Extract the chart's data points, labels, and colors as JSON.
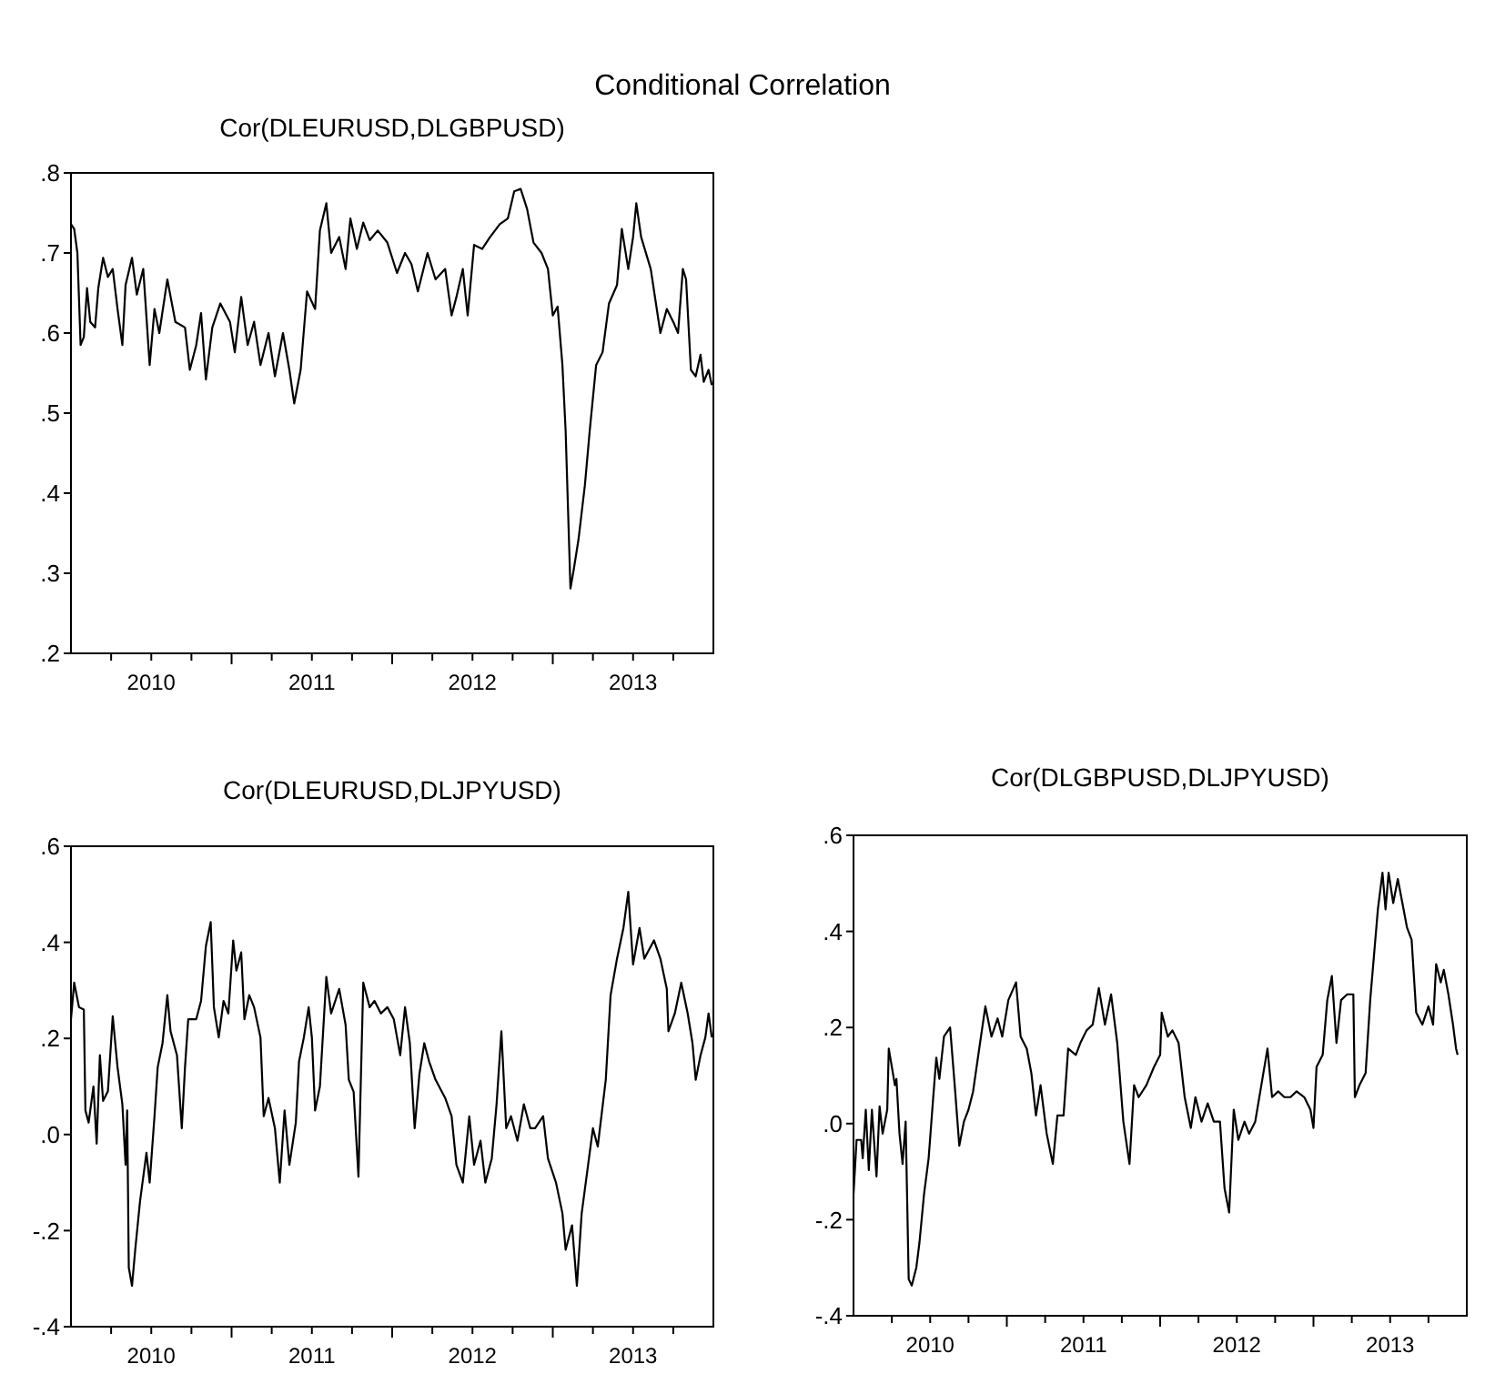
{
  "chart_data": [
    {
      "type": "line",
      "title": "Conditional Correlation",
      "subtitle": "Cor(DLEURUSD,DLGBPUSD)",
      "xlim": [
        2010,
        2014
      ],
      "ylim": [
        0.2,
        0.8
      ],
      "yticks": [
        {
          "value": 0.2,
          "label": ".2"
        },
        {
          "value": 0.3,
          "label": ".3"
        },
        {
          "value": 0.4,
          "label": ".4"
        },
        {
          "value": 0.5,
          "label": ".5"
        },
        {
          "value": 0.6,
          "label": ".6"
        },
        {
          "value": 0.7,
          "label": ".7"
        },
        {
          "value": 0.8,
          "label": ".8"
        }
      ],
      "xticks": [
        {
          "value": 2010.25,
          "label": null
        },
        {
          "value": 2010.5,
          "label": "2010"
        },
        {
          "value": 2010.75,
          "label": null
        },
        {
          "value": 2011,
          "label": null
        },
        {
          "value": 2011.25,
          "label": null
        },
        {
          "value": 2011.5,
          "label": "2011"
        },
        {
          "value": 2011.75,
          "label": null
        },
        {
          "value": 2012,
          "label": null
        },
        {
          "value": 2012.25,
          "label": null
        },
        {
          "value": 2012.5,
          "label": "2012"
        },
        {
          "value": 2012.75,
          "label": null
        },
        {
          "value": 2013,
          "label": null
        },
        {
          "value": 2013.25,
          "label": null
        },
        {
          "value": 2013.5,
          "label": "2013"
        },
        {
          "value": 2013.75,
          "label": null
        }
      ],
      "grid": false,
      "series": [
        {
          "color": "#000000",
          "x": [
            2010.0,
            2010.02,
            2010.04,
            2010.06,
            2010.08,
            2010.1,
            2010.12,
            2010.15,
            2010.17,
            2010.2,
            2010.23,
            2010.26,
            2010.29,
            2010.32,
            2010.34,
            2010.38,
            2010.41,
            2010.45,
            2010.49,
            2010.52,
            2010.55,
            2010.6,
            2010.65,
            2010.71,
            2010.74,
            2010.78,
            2010.81,
            2010.84,
            2010.88,
            2010.93,
            2010.99,
            2011.02,
            2011.06,
            2011.1,
            2011.14,
            2011.18,
            2011.23,
            2011.27,
            2011.32,
            2011.36,
            2011.39,
            2011.43,
            2011.47,
            2011.52,
            2011.55,
            2011.59,
            2011.62,
            2011.67,
            2011.71,
            2011.74,
            2011.78,
            2011.82,
            2011.86,
            2011.91,
            2011.97,
            2012.03,
            2012.08,
            2012.12,
            2012.16,
            2012.22,
            2012.27,
            2012.33,
            2012.37,
            2012.4,
            2012.44,
            2012.47,
            2012.51,
            2012.56,
            2012.61,
            2012.67,
            2012.72,
            2012.76,
            2012.8,
            2012.84,
            2012.88,
            2012.93,
            2012.97,
            2013.0,
            2013.03,
            2013.06,
            2013.08,
            2013.11,
            2013.13,
            2013.16,
            2013.2,
            2013.23,
            2013.27,
            2013.31,
            2013.35,
            2013.4,
            2013.43,
            2013.47,
            2013.5,
            2013.52,
            2013.55,
            2013.61,
            2013.67,
            2013.71,
            2013.75,
            2013.78,
            2013.81,
            2013.83,
            2013.86,
            2013.89,
            2013.92,
            2013.94,
            2013.97,
            2013.99
          ],
          "values": [
            0.736,
            0.73,
            0.7,
            0.585,
            0.595,
            0.656,
            0.614,
            0.607,
            0.656,
            0.694,
            0.67,
            0.68,
            0.63,
            0.585,
            0.66,
            0.694,
            0.648,
            0.68,
            0.56,
            0.63,
            0.6,
            0.667,
            0.614,
            0.607,
            0.554,
            0.585,
            0.625,
            0.542,
            0.607,
            0.637,
            0.614,
            0.576,
            0.645,
            0.585,
            0.614,
            0.56,
            0.6,
            0.546,
            0.6,
            0.554,
            0.512,
            0.554,
            0.652,
            0.63,
            0.728,
            0.762,
            0.7,
            0.72,
            0.68,
            0.743,
            0.705,
            0.738,
            0.716,
            0.728,
            0.713,
            0.675,
            0.7,
            0.686,
            0.652,
            0.7,
            0.667,
            0.68,
            0.622,
            0.645,
            0.68,
            0.622,
            0.71,
            0.705,
            0.72,
            0.736,
            0.743,
            0.777,
            0.78,
            0.755,
            0.713,
            0.7,
            0.68,
            0.622,
            0.633,
            0.56,
            0.478,
            0.281,
            0.304,
            0.342,
            0.41,
            0.478,
            0.56,
            0.576,
            0.637,
            0.66,
            0.73,
            0.68,
            0.72,
            0.762,
            0.72,
            0.68,
            0.6,
            0.63,
            0.614,
            0.6,
            0.68,
            0.667,
            0.554,
            0.546,
            0.573,
            0.539,
            0.554,
            0.535
          ]
        }
      ]
    },
    {
      "type": "line",
      "subtitle": "Cor(DLEURUSD,DLJPYUSD)",
      "xlim": [
        2010,
        2014
      ],
      "ylim": [
        -0.4,
        0.6
      ],
      "yticks": [
        {
          "value": -0.4,
          "label": "-.4"
        },
        {
          "value": -0.2,
          "label": "-.2"
        },
        {
          "value": 0,
          "label": ".0"
        },
        {
          "value": 0.2,
          "label": ".2"
        },
        {
          "value": 0.4,
          "label": ".4"
        },
        {
          "value": 0.6,
          "label": ".6"
        }
      ],
      "xticks": [
        {
          "value": 2010.25,
          "label": null
        },
        {
          "value": 2010.5,
          "label": "2010"
        },
        {
          "value": 2010.75,
          "label": null
        },
        {
          "value": 2011,
          "label": null
        },
        {
          "value": 2011.25,
          "label": null
        },
        {
          "value": 2011.5,
          "label": "2011"
        },
        {
          "value": 2011.75,
          "label": null
        },
        {
          "value": 2012,
          "label": null
        },
        {
          "value": 2012.25,
          "label": null
        },
        {
          "value": 2012.5,
          "label": "2012"
        },
        {
          "value": 2012.75,
          "label": null
        },
        {
          "value": 2013,
          "label": null
        },
        {
          "value": 2013.25,
          "label": null
        },
        {
          "value": 2013.5,
          "label": "2013"
        },
        {
          "value": 2013.75,
          "label": null
        }
      ],
      "grid": false,
      "series": [
        {
          "color": "#000000",
          "x": [
            2010.0,
            2010.02,
            2010.05,
            2010.08,
            2010.09,
            2010.11,
            2010.14,
            2010.16,
            2010.18,
            2010.2,
            2010.23,
            2010.26,
            2010.29,
            2010.32,
            2010.34,
            2010.35,
            2010.36,
            2010.38,
            2010.4,
            2010.43,
            2010.47,
            2010.49,
            2010.52,
            2010.54,
            2010.57,
            2010.6,
            2010.62,
            2010.66,
            2010.69,
            2010.71,
            2010.73,
            2010.78,
            2010.81,
            2010.84,
            2010.87,
            2010.89,
            2010.92,
            2010.95,
            2010.98,
            2011.01,
            2011.03,
            2011.06,
            2011.08,
            2011.11,
            2011.14,
            2011.18,
            2011.2,
            2011.23,
            2011.27,
            2011.3,
            2011.33,
            2011.36,
            2011.4,
            2011.42,
            2011.45,
            2011.48,
            2011.5,
            2011.52,
            2011.55,
            2011.59,
            2011.62,
            2011.67,
            2011.71,
            2011.73,
            2011.76,
            2011.79,
            2011.82,
            2011.86,
            2011.89,
            2011.93,
            2011.97,
            2012.01,
            2012.05,
            2012.08,
            2012.11,
            2012.14,
            2012.17,
            2012.2,
            2012.23,
            2012.27,
            2012.33,
            2012.37,
            2012.4,
            2012.44,
            2012.48,
            2012.51,
            2012.55,
            2012.58,
            2012.62,
            2012.65,
            2012.68,
            2012.71,
            2012.74,
            2012.78,
            2012.82,
            2012.86,
            2012.89,
            2012.94,
            2012.97,
            2013.02,
            2013.06,
            2013.08,
            2013.12,
            2013.15,
            2013.18,
            2013.22,
            2013.25,
            2013.28,
            2013.33,
            2013.36,
            2013.4,
            2013.44,
            2013.47,
            2013.5,
            2013.54,
            2013.57,
            2013.63,
            2013.67,
            2013.71,
            2013.72,
            2013.76,
            2013.8,
            2013.84,
            2013.87,
            2013.89,
            2013.92,
            2013.95,
            2013.97,
            2013.99
          ],
          "values": [
            0.24,
            0.316,
            0.265,
            0.26,
            0.05,
            0.025,
            0.1,
            -0.019,
            0.165,
            0.07,
            0.09,
            0.246,
            0.14,
            0.063,
            -0.063,
            0.05,
            -0.277,
            -0.315,
            -0.24,
            -0.139,
            -0.038,
            -0.1,
            0.038,
            0.14,
            0.19,
            0.29,
            0.215,
            0.165,
            0.013,
            0.14,
            0.24,
            0.24,
            0.278,
            0.392,
            0.442,
            0.265,
            0.202,
            0.278,
            0.252,
            0.404,
            0.341,
            0.379,
            0.24,
            0.29,
            0.265,
            0.202,
            0.038,
            0.076,
            0.013,
            -0.1,
            0.05,
            -0.063,
            0.025,
            0.152,
            0.202,
            0.265,
            0.202,
            0.05,
            0.1,
            0.328,
            0.252,
            0.303,
            0.228,
            0.114,
            0.089,
            -0.088,
            0.316,
            0.265,
            0.278,
            0.252,
            0.265,
            0.24,
            0.165,
            0.265,
            0.19,
            0.013,
            0.127,
            0.19,
            0.152,
            0.114,
            0.076,
            0.038,
            -0.063,
            -0.1,
            0.038,
            -0.063,
            -0.013,
            -0.1,
            -0.05,
            0.063,
            0.215,
            0.013,
            0.038,
            -0.013,
            0.063,
            0.013,
            0.013,
            0.038,
            -0.05,
            -0.1,
            -0.164,
            -0.24,
            -0.189,
            -0.315,
            -0.164,
            -0.063,
            0.013,
            -0.025,
            0.114,
            0.29,
            0.366,
            0.43,
            0.505,
            0.354,
            0.43,
            0.366,
            0.404,
            0.366,
            0.303,
            0.215,
            0.252,
            0.316,
            0.252,
            0.19,
            0.114,
            0.165,
            0.202,
            0.252,
            0.202
          ]
        }
      ]
    },
    {
      "type": "line",
      "subtitle": "Cor(DLGBPUSD,DLJPYUSD)",
      "xlim": [
        2010,
        2014
      ],
      "ylim": [
        -0.4,
        0.6
      ],
      "yticks": [
        {
          "value": -0.4,
          "label": "-.4"
        },
        {
          "value": -0.2,
          "label": "-.2"
        },
        {
          "value": 0,
          "label": ".0"
        },
        {
          "value": 0.2,
          "label": ".2"
        },
        {
          "value": 0.4,
          "label": ".4"
        },
        {
          "value": 0.6,
          "label": ".6"
        }
      ],
      "xticks": [
        {
          "value": 2010.25,
          "label": null
        },
        {
          "value": 2010.5,
          "label": "2010"
        },
        {
          "value": 2010.75,
          "label": null
        },
        {
          "value": 2011,
          "label": null
        },
        {
          "value": 2011.25,
          "label": null
        },
        {
          "value": 2011.5,
          "label": "2011"
        },
        {
          "value": 2011.75,
          "label": null
        },
        {
          "value": 2012,
          "label": null
        },
        {
          "value": 2012.25,
          "label": null
        },
        {
          "value": 2012.5,
          "label": "2012"
        },
        {
          "value": 2012.75,
          "label": null
        },
        {
          "value": 2013,
          "label": null
        },
        {
          "value": 2013.25,
          "label": null
        },
        {
          "value": 2013.5,
          "label": "2013"
        },
        {
          "value": 2013.75,
          "label": null
        }
      ],
      "grid": false,
      "series": [
        {
          "color": "#000000",
          "x": [
            2010.0,
            2010.02,
            2010.05,
            2010.06,
            2010.08,
            2010.1,
            2010.12,
            2010.15,
            2010.17,
            2010.19,
            2010.22,
            2010.23,
            2010.27,
            2010.28,
            2010.3,
            2010.32,
            2010.34,
            2010.36,
            2010.38,
            2010.41,
            2010.43,
            2010.46,
            2010.49,
            2010.52,
            2010.54,
            2010.56,
            2010.59,
            2010.63,
            2010.66,
            2010.69,
            2010.72,
            2010.75,
            2010.78,
            2010.82,
            2010.86,
            2010.9,
            2010.94,
            2010.97,
            2011.01,
            2011.06,
            2011.09,
            2011.13,
            2011.16,
            2011.19,
            2011.22,
            2011.26,
            2011.3,
            2011.33,
            2011.37,
            2011.4,
            2011.45,
            2011.48,
            2011.52,
            2011.56,
            2011.6,
            2011.64,
            2011.68,
            2011.72,
            2011.76,
            2011.8,
            2011.83,
            2011.86,
            2011.91,
            2011.96,
            2012.0,
            2012.01,
            2012.05,
            2012.08,
            2012.12,
            2012.16,
            2012.2,
            2012.23,
            2012.27,
            2012.31,
            2012.35,
            2012.39,
            2012.42,
            2012.45,
            2012.48,
            2012.51,
            2012.55,
            2012.58,
            2012.62,
            2012.66,
            2012.7,
            2012.73,
            2012.77,
            2012.81,
            2012.85,
            2012.89,
            2012.94,
            2012.98,
            2013.0,
            2013.02,
            2013.06,
            2013.09,
            2013.12,
            2013.15,
            2013.18,
            2013.22,
            2013.26,
            2013.27,
            2013.3,
            2013.34,
            2013.37,
            2013.4,
            2013.42,
            2013.45,
            2013.47,
            2013.49,
            2013.52,
            2013.55,
            2013.58,
            2013.61,
            2013.64,
            2013.67,
            2013.71,
            2013.75,
            2013.78,
            2013.8,
            2013.83,
            2013.85,
            2013.88,
            2013.91,
            2013.93,
            2013.94
          ],
          "values": [
            -0.147,
            -0.034,
            -0.034,
            -0.072,
            0.029,
            -0.097,
            0.029,
            -0.11,
            0.036,
            -0.021,
            0.029,
            0.156,
            0.08,
            0.093,
            -0.021,
            -0.084,
            0.004,
            -0.324,
            -0.337,
            -0.299,
            -0.248,
            -0.147,
            -0.072,
            0.055,
            0.137,
            0.093,
            0.181,
            0.2,
            0.08,
            -0.046,
            0.004,
            0.029,
            0.067,
            0.156,
            0.244,
            0.181,
            0.219,
            0.181,
            0.257,
            0.294,
            0.181,
            0.156,
            0.105,
            0.017,
            0.08,
            -0.021,
            -0.084,
            0.017,
            0.017,
            0.156,
            0.143,
            0.168,
            0.194,
            0.206,
            0.282,
            0.206,
            0.269,
            0.168,
            0.004,
            -0.084,
            0.08,
            0.055,
            0.08,
            0.118,
            0.143,
            0.231,
            0.181,
            0.194,
            0.168,
            0.055,
            -0.009,
            0.055,
            0.004,
            0.042,
            0.004,
            0.004,
            -0.135,
            -0.185,
            0.029,
            -0.034,
            0.004,
            -0.021,
            0.004,
            0.08,
            0.156,
            0.055,
            0.067,
            0.055,
            0.055,
            0.067,
            0.055,
            0.029,
            -0.009,
            0.118,
            0.143,
            0.257,
            0.307,
            0.168,
            0.257,
            0.269,
            0.269,
            0.055,
            0.08,
            0.105,
            0.257,
            0.37,
            0.446,
            0.522,
            0.446,
            0.522,
            0.459,
            0.509,
            0.459,
            0.408,
            0.383,
            0.231,
            0.206,
            0.244,
            0.206,
            0.332,
            0.294,
            0.32,
            0.269,
            0.206,
            0.156,
            0.143
          ]
        }
      ]
    }
  ]
}
